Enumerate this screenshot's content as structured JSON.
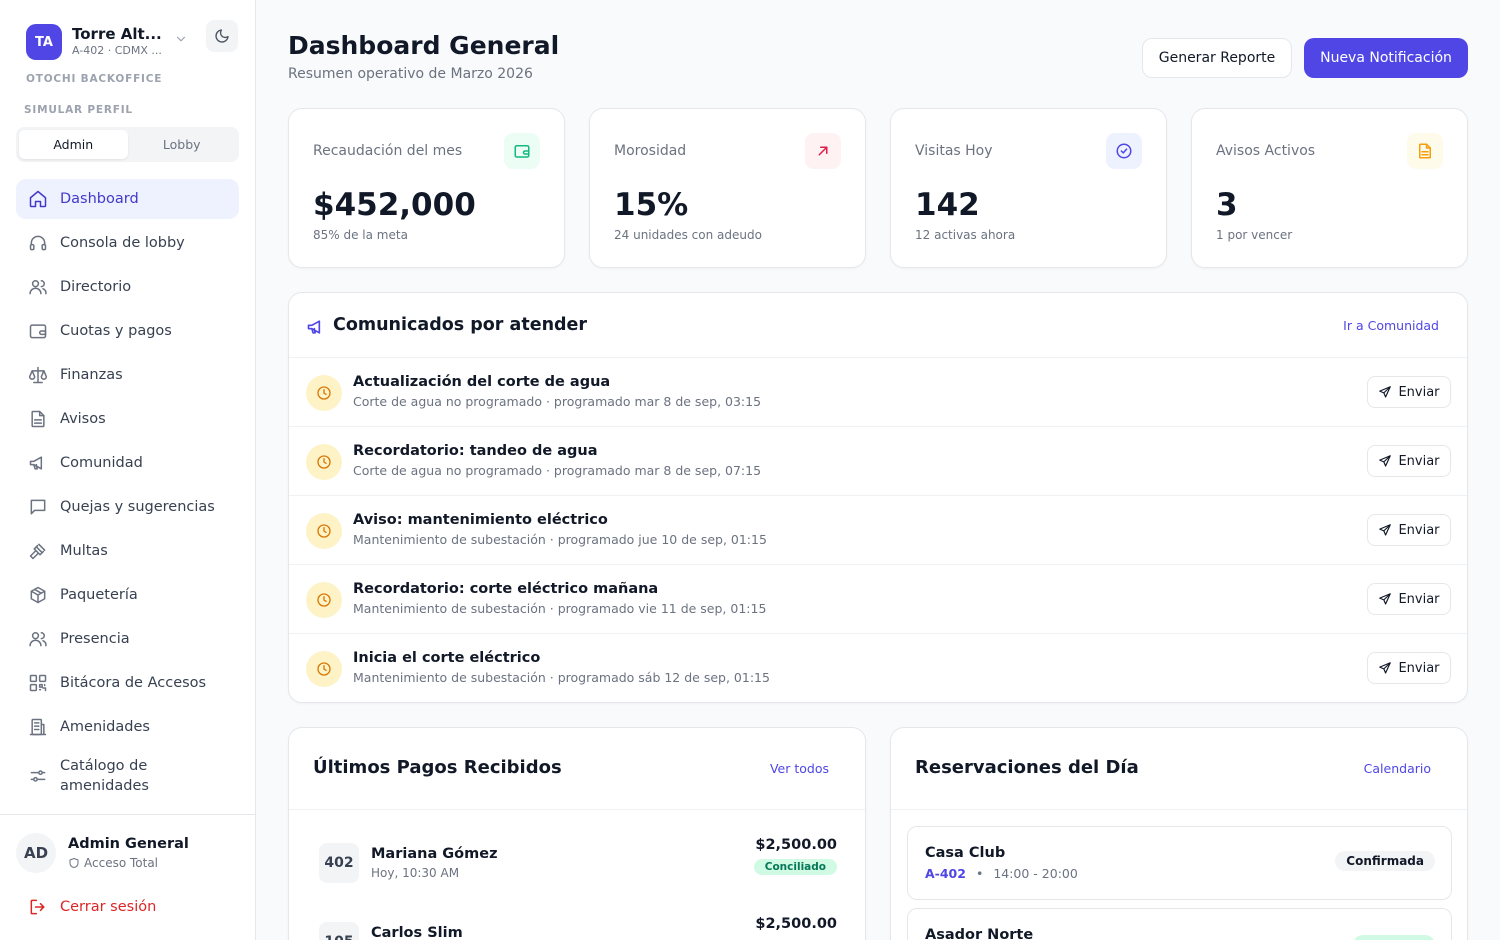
{
  "sidebar": {
    "org": {
      "initials": "TA",
      "name": "Torre Alt...",
      "sub": "A-402 · CDMX ..."
    },
    "brand": "OTOCHI BACKOFFICE",
    "simulate_label": "SIMULAR PERFIL",
    "profiles": [
      "Admin",
      "Lobby"
    ],
    "nav": [
      {
        "label": "Dashboard",
        "icon": "home-icon"
      },
      {
        "label": "Consola de lobby",
        "icon": "headset-icon"
      },
      {
        "label": "Directorio",
        "icon": "users-icon"
      },
      {
        "label": "Cuotas y pagos",
        "icon": "wallet-icon"
      },
      {
        "label": "Finanzas",
        "icon": "scale-icon"
      },
      {
        "label": "Avisos",
        "icon": "file-icon"
      },
      {
        "label": "Comunidad",
        "icon": "megaphone-icon"
      },
      {
        "label": "Quejas y sugerencias",
        "icon": "message-icon"
      },
      {
        "label": "Multas",
        "icon": "gavel-icon"
      },
      {
        "label": "Paquetería",
        "icon": "package-icon"
      },
      {
        "label": "Presencia",
        "icon": "users-icon"
      },
      {
        "label": "Bitácora de Accesos",
        "icon": "qr-icon"
      },
      {
        "label": "Amenidades",
        "icon": "building-icon"
      },
      {
        "label": "Catálogo de amenidades",
        "icon": "sliders-icon"
      }
    ],
    "user": {
      "initials": "AD",
      "name": "Admin General",
      "role": "Acceso Total"
    },
    "logout": "Cerrar sesión"
  },
  "header": {
    "title": "Dashboard General",
    "subtitle": "Resumen operativo de Marzo 2026",
    "report_button": "Generar Reporte",
    "notify_button": "Nueva Notificación"
  },
  "stats": [
    {
      "label": "Recaudación del mes",
      "value": "$452,000",
      "note": "85% de la meta",
      "icon": "wallet-icon",
      "color": "#10b981",
      "bg": "#ecfdf5"
    },
    {
      "label": "Morosidad",
      "value": "15%",
      "note": "24 unidades con adeudo",
      "icon": "arrow-up-right-icon",
      "color": "#e11d48",
      "bg": "#fef2f2"
    },
    {
      "label": "Visitas Hoy",
      "value": "142",
      "note": "12 activas ahora",
      "icon": "check-circle-icon",
      "color": "#4f46e5",
      "bg": "#eef2ff"
    },
    {
      "label": "Avisos Activos",
      "value": "3",
      "note": "1 por vencer",
      "icon": "file-icon",
      "color": "#f59e0b",
      "bg": "#fffbeb"
    }
  ],
  "comunicados": {
    "title": "Comunicados por atender",
    "link": "Ir a Comunidad",
    "send_label": "Enviar",
    "items": [
      {
        "title": "Actualización del corte de agua",
        "sub": "Corte de agua no programado · programado mar 8 de sep, 03:15"
      },
      {
        "title": "Recordatorio: tandeo de agua",
        "sub": "Corte de agua no programado · programado mar 8 de sep, 07:15"
      },
      {
        "title": "Aviso: mantenimiento eléctrico",
        "sub": "Mantenimiento de subestación · programado jue 10 de sep, 01:15"
      },
      {
        "title": "Recordatorio: corte eléctrico mañana",
        "sub": "Mantenimiento de subestación · programado vie 11 de sep, 01:15"
      },
      {
        "title": "Inicia el corte eléctrico",
        "sub": "Mantenimiento de subestación · programado sáb 12 de sep, 01:15"
      }
    ]
  },
  "payments": {
    "title": "Últimos Pagos Recibidos",
    "link": "Ver todos",
    "items": [
      {
        "unit": "402",
        "name": "Mariana Gómez",
        "time": "Hoy, 10:30 AM",
        "amount": "$2,500.00",
        "status": "Conciliado"
      },
      {
        "unit": "105",
        "name": "Carlos Slim",
        "time": "",
        "amount": "$2,500.00",
        "status": ""
      }
    ]
  },
  "reservations": {
    "title": "Reservaciones del Día",
    "link": "Calendario",
    "items": [
      {
        "name": "Casa Club",
        "unit": "A-402",
        "sep": "•",
        "time": "14:00 - 20:00",
        "status": "Confirmada"
      },
      {
        "name": "Asador Norte",
        "unit": "",
        "sep": "",
        "time": "",
        "status": ""
      }
    ]
  }
}
